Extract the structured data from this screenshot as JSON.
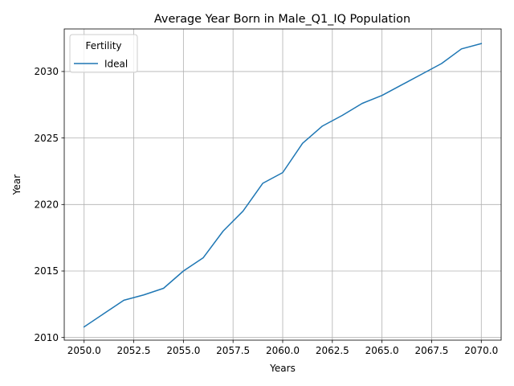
{
  "chart_data": {
    "type": "line",
    "title": "Average Year Born in Male_Q1_IQ Population",
    "xlabel": "Years",
    "ylabel": "Year",
    "xlim": [
      2049.0,
      2071.0
    ],
    "ylim": [
      2009.8,
      2033.2
    ],
    "xticks": [
      2050.0,
      2052.5,
      2055.0,
      2057.5,
      2060.0,
      2062.5,
      2065.0,
      2067.5,
      2070.0
    ],
    "xtick_labels": [
      "2050.0",
      "2052.5",
      "2055.0",
      "2057.5",
      "2060.0",
      "2062.5",
      "2065.0",
      "2067.5",
      "2070.0"
    ],
    "yticks": [
      2010,
      2015,
      2020,
      2025,
      2030
    ],
    "ytick_labels": [
      "2010",
      "2015",
      "2020",
      "2025",
      "2030"
    ],
    "grid": true,
    "legend": {
      "title": "Fertility",
      "placement": "upper-left"
    },
    "series": [
      {
        "name": "Ideal",
        "color": "#1f77b4",
        "x": [
          2050,
          2051,
          2052,
          2053,
          2054,
          2055,
          2056,
          2057,
          2058,
          2059,
          2060,
          2061,
          2062,
          2063,
          2064,
          2065,
          2066,
          2067,
          2068,
          2069,
          2070
        ],
        "y": [
          2010.8,
          2011.8,
          2012.8,
          2013.2,
          2013.7,
          2015.0,
          2016.0,
          2018.0,
          2019.5,
          2021.6,
          2022.4,
          2024.6,
          2025.9,
          2026.7,
          2027.6,
          2028.2,
          2029.0,
          2029.8,
          2030.6,
          2031.7,
          2032.1
        ]
      }
    ]
  }
}
